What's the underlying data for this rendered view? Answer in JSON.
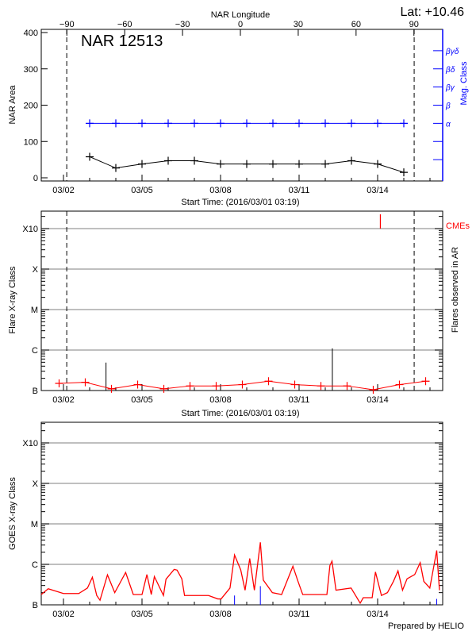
{
  "header": {
    "lat_label": "Lat: +10.46",
    "region_label": "NAR 12513",
    "footer": "Prepared by HELIO"
  },
  "colors": {
    "area": "#000000",
    "mag": "#0000ff",
    "flare": "#ff0000",
    "cme": "#ff0000",
    "goes": "#ff0000",
    "goes_marker": "#0000ff",
    "grid": "#999999"
  },
  "chart_data": [
    {
      "type": "line",
      "panel": "nar",
      "xlabel": "Start Time: (2016/03/01 03:19)",
      "xrange": [
        "03/01 03:19",
        "03/16 09:00"
      ],
      "xticks": [
        "03/02",
        "03/05",
        "03/08",
        "03/11",
        "03/14"
      ],
      "top_axis": {
        "label": "NAR Longitude",
        "ticks": [
          -90,
          -60,
          -30,
          0,
          30,
          60,
          90
        ]
      },
      "ylabel": "NAR Area",
      "ylim": [
        0,
        400
      ],
      "yticks": [
        0,
        100,
        200,
        300,
        400
      ],
      "y2label": "Mag. Class",
      "y2ticks": [
        "",
        "",
        "α",
        "β",
        "βγ",
        "βδ",
        "βγδ"
      ],
      "limb_times": [
        "03/02 03:00",
        "03/15 09:30"
      ],
      "area": {
        "x": [
          "03/03 00:00",
          "03/04 00:00",
          "03/05 00:00",
          "03/06 00:00",
          "03/07 00:00",
          "03/08 00:00",
          "03/09 00:00",
          "03/10 00:00",
          "03/11 00:00",
          "03/12 00:00",
          "03/13 00:00",
          "03/14 00:00",
          "03/15 00:00"
        ],
        "values": [
          58,
          27,
          38,
          47,
          47,
          38,
          38,
          38,
          38,
          38,
          47,
          38,
          15
        ]
      },
      "mag_class": {
        "x": [
          "03/03 00:00",
          "03/04 00:00",
          "03/05 00:00",
          "03/06 00:00",
          "03/07 00:00",
          "03/08 00:00",
          "03/09 00:00",
          "03/10 00:00",
          "03/11 00:00",
          "03/12 00:00",
          "03/13 00:00",
          "03/14 00:00",
          "03/15 00:00"
        ],
        "values": [
          "α",
          "α",
          "α",
          "α",
          "α",
          "α",
          "α",
          "α",
          "α",
          "α",
          "α",
          "α",
          "α"
        ]
      }
    },
    {
      "type": "line",
      "panel": "flares",
      "xlabel": "Start Time: (2016/03/01 03:19)",
      "xticks": [
        "03/02",
        "03/05",
        "03/08",
        "03/11",
        "03/14"
      ],
      "ylabel": "Flare X-ray Class",
      "yticks": [
        "B",
        "C",
        "M",
        "X",
        "X10"
      ],
      "y2label": "Flares observed in AR",
      "cme_label": "CMEs",
      "limb_times": [
        "03/02 03:00",
        "03/15 09:30"
      ],
      "flare_line": {
        "x": [
          "03/01 20:00",
          "03/02 20:00",
          "03/03 20:00",
          "03/04 20:00",
          "03/05 20:00",
          "03/06 20:00",
          "03/07 20:00",
          "03/08 20:00",
          "03/09 20:00",
          "03/10 20:00",
          "03/11 20:00",
          "03/12 20:00",
          "03/13 20:00",
          "03/14 20:00",
          "03/15 20:00"
        ],
        "values": [
          "B1.5",
          "B1.6",
          "B1.1",
          "B1.4",
          "B1.1",
          "B1.3",
          "B1.3",
          "B1.4",
          "B1.7",
          "B1.4",
          "B1.3",
          "B1.3",
          "B0.9",
          "B1.4",
          "B1.7"
        ]
      },
      "flares": [
        {
          "time": "03/03 15:00",
          "class": "B4.9"
        },
        {
          "time": "03/12 06:30",
          "class": "C1.1"
        }
      ],
      "cmes": [
        "03/14 02:30"
      ]
    },
    {
      "type": "line",
      "panel": "goes",
      "xticks": [
        "03/02",
        "03/05",
        "03/08",
        "03/11",
        "03/14"
      ],
      "ylabel": "GOES X-ray Class",
      "yticks": [
        "B",
        "C",
        "M",
        "X",
        "X10"
      ],
      "series": [
        [
          "03/01 03:19",
          "B1.8"
        ],
        [
          "03/01 10:00",
          "B2.5"
        ],
        [
          "03/02 00:00",
          "B1.9"
        ],
        [
          "03/02 14:00",
          "B1.9"
        ],
        [
          "03/02 22:00",
          "B2.6"
        ],
        [
          "03/03 02:30",
          "B4.8"
        ],
        [
          "03/03 06:30",
          "B1.7"
        ],
        [
          "03/03 09:30",
          "B1.3"
        ],
        [
          "03/03 16:20",
          "B5.5"
        ],
        [
          "03/03 23:00",
          "B2.0"
        ],
        [
          "03/04 09:00",
          "B6.3"
        ],
        [
          "03/04 16:00",
          "B1.8"
        ],
        [
          "03/05 00:00",
          "B1.8"
        ],
        [
          "03/05 04:30",
          "B5.6"
        ],
        [
          "03/05 08:30",
          "B1.8"
        ],
        [
          "03/05 11:20",
          "B5.0"
        ],
        [
          "03/05 19:40",
          "B1.7"
        ],
        [
          "03/05 22:00",
          "B4.3"
        ],
        [
          "03/06 05:30",
          "B7.5"
        ],
        [
          "03/06 08:10",
          "B7.2"
        ],
        [
          "03/06 12:30",
          "B4.4"
        ],
        [
          "03/06 15:00",
          "B1.7"
        ],
        [
          "03/07 02:00",
          "B1.7"
        ],
        [
          "03/07 13:00",
          "B1.7"
        ],
        [
          "03/07 21:30",
          "B1.4"
        ],
        [
          "03/08 00:30",
          "B1.4"
        ],
        [
          "03/08 08:40",
          "B2.6"
        ],
        [
          "03/08 12:50",
          "C1.7"
        ],
        [
          "03/08 18:30",
          "B7.3"
        ],
        [
          "03/08 22:30",
          "B2.3"
        ],
        [
          "03/09 02:45",
          "C1.4"
        ],
        [
          "03/09 07:00",
          "B2.3"
        ],
        [
          "03/09 12:30",
          "C3.5"
        ],
        [
          "03/09 15:10",
          "B4.1"
        ],
        [
          "03/09 23:30",
          "B2.0"
        ],
        [
          "03/10 08:00",
          "B1.8"
        ],
        [
          "03/10 18:20",
          "B9.0"
        ],
        [
          "03/10 23:00",
          "B3.8"
        ],
        [
          "03/11 03:20",
          "B1.8"
        ],
        [
          "03/11 14:20",
          "B1.8"
        ],
        [
          "03/12 01:30",
          "B1.8"
        ],
        [
          "03/12 04:15",
          "B9.4"
        ],
        [
          "03/12 06:10",
          "C1.2"
        ],
        [
          "03/12 09:50",
          "B2.3"
        ],
        [
          "03/12 23:40",
          "B2.6"
        ],
        [
          "03/13 08:00",
          "B1.1"
        ],
        [
          "03/13 10:50",
          "B1.5"
        ],
        [
          "03/13 19:00",
          "B1.5"
        ],
        [
          "03/13 22:00",
          "B6.5"
        ],
        [
          "03/14 03:30",
          "B1.7"
        ],
        [
          "03/14 09:00",
          "B2.0"
        ],
        [
          "03/14 14:30",
          "B3.8"
        ],
        [
          "03/14 18:40",
          "B6.9"
        ],
        [
          "03/14 22:50",
          "B2.3"
        ],
        [
          "03/15 03:00",
          "B4.4"
        ],
        [
          "03/15 10:00",
          "B5.6"
        ],
        [
          "03/15 15:00",
          "C1.1"
        ],
        [
          "03/15 18:20",
          "B3.8"
        ],
        [
          "03/15 23:50",
          "B2.6"
        ],
        [
          "03/16 06:10",
          "C2.2"
        ],
        [
          "03/16 08:40",
          "B2.3"
        ]
      ],
      "markers": [
        [
          "03/08 12:50",
          "B1.7"
        ],
        [
          "03/09 12:30",
          "B2.9"
        ],
        [
          "03/16 06:10",
          "B1.4"
        ]
      ]
    }
  ]
}
